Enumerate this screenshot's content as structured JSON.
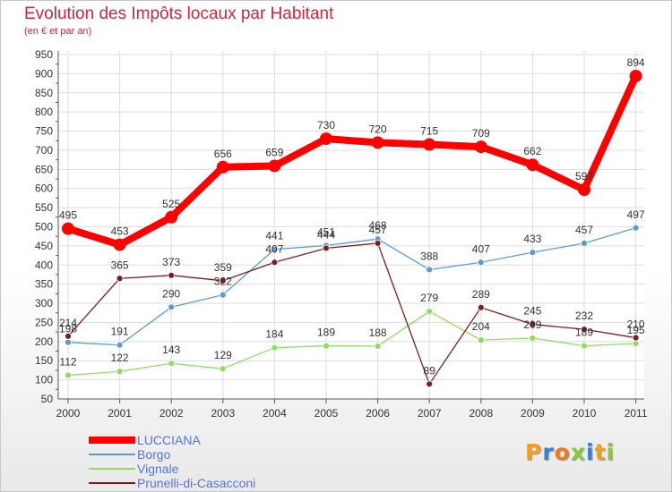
{
  "chart_data": {
    "type": "line",
    "title": "Evolution des Impôts locaux par Habitant",
    "subtitle": "(en € et par an)",
    "xlabel": "",
    "ylabel": "",
    "x": [
      "2000",
      "2001",
      "2002",
      "2003",
      "2004",
      "2005",
      "2006",
      "2007",
      "2008",
      "2009",
      "2010",
      "2011"
    ],
    "ylim": [
      50,
      950
    ],
    "yticks": [
      50,
      100,
      150,
      200,
      250,
      300,
      350,
      400,
      450,
      500,
      550,
      600,
      650,
      700,
      750,
      800,
      850,
      900,
      950
    ],
    "grid": true,
    "legend_position": "bottom-left",
    "series": [
      {
        "name": "LUCCIANA",
        "color": "#ff0000",
        "values": [
          495,
          453,
          525,
          656,
          659,
          730,
          720,
          715,
          709,
          662,
          597,
          894
        ]
      },
      {
        "name": "Borgo",
        "color": "#5b9bd5",
        "values": [
          198,
          191,
          290,
          322,
          441,
          451,
          468,
          388,
          407,
          433,
          457,
          497
        ]
      },
      {
        "name": "Vignale",
        "color": "#8fdc64",
        "values": [
          112,
          122,
          143,
          129,
          184,
          189,
          188,
          279,
          204,
          209,
          189,
          195
        ]
      },
      {
        "name": "Prunelli-di-Casacconi",
        "color": "#7a1f1f",
        "values": [
          214,
          365,
          373,
          359,
          407,
          444,
          457,
          89,
          289,
          245,
          232,
          210
        ]
      }
    ]
  },
  "logo": {
    "text": "Proxiti",
    "colors": [
      "#f0a020",
      "#3a7fd8",
      "#f07820",
      "#8cc83c",
      "#3a7fd8",
      "#f0a020",
      "#8cc83c"
    ]
  }
}
